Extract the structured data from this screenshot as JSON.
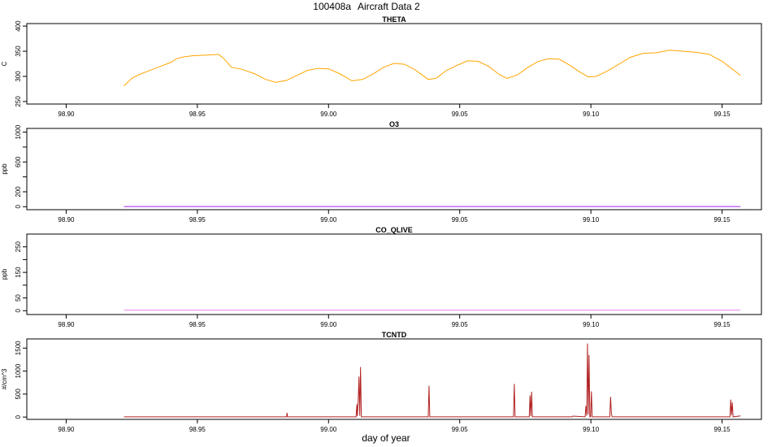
{
  "title_id": "100408a",
  "title_text": "Aircraft Data 2",
  "xlabel": "day of year",
  "x_range": [
    98.885,
    99.165
  ],
  "x_ticks": [
    98.9,
    98.95,
    99.0,
    99.05,
    99.1,
    99.15
  ],
  "x_tick_labels": [
    "98.90",
    "98.95",
    "99.00",
    "99.05",
    "99.10",
    "99.15"
  ],
  "colors": {
    "THETA": "#ffa500",
    "O3": "#a020f0",
    "CO_QLIVE": "#ee82ee",
    "TCNTD": "#b22222",
    "frame": "#000000"
  },
  "chart_data": [
    {
      "type": "line",
      "title": "THETA",
      "ylabel": "C",
      "ylim": [
        245,
        405
      ],
      "y_ticks": [
        250,
        300,
        350,
        400
      ],
      "y_tick_labels": [
        "250",
        "300",
        "350",
        "400"
      ],
      "series": [
        {
          "name": "THETA",
          "x": [
            98.922,
            98.925,
            98.928,
            98.932,
            98.936,
            98.94,
            98.942,
            98.945,
            98.948,
            98.952,
            98.956,
            98.958,
            98.96,
            98.963,
            98.967,
            98.972,
            98.976,
            98.98,
            98.984,
            98.988,
            98.992,
            98.996,
            99.0,
            99.004,
            99.009,
            99.013,
            99.017,
            99.021,
            99.025,
            99.029,
            99.033,
            99.038,
            99.041,
            99.045,
            99.049,
            99.053,
            99.057,
            99.061,
            99.065,
            99.068,
            99.072,
            99.076,
            99.08,
            99.084,
            99.088,
            99.092,
            99.096,
            99.099,
            99.102,
            99.106,
            99.11,
            99.115,
            99.12,
            99.125,
            99.13,
            99.135,
            99.14,
            99.145,
            99.15,
            99.153,
            99.157
          ],
          "values": [
            281,
            296,
            304,
            312,
            320,
            328,
            335,
            339,
            341,
            342,
            343,
            344,
            336,
            318,
            314,
            305,
            294,
            288,
            292,
            302,
            312,
            316,
            315,
            306,
            291,
            294,
            305,
            318,
            326,
            324,
            313,
            294,
            296,
            312,
            322,
            331,
            330,
            320,
            304,
            296,
            303,
            318,
            330,
            335,
            334,
            322,
            308,
            299,
            300,
            310,
            322,
            338,
            346,
            347,
            352,
            350,
            348,
            344,
            330,
            318,
            302
          ]
        }
      ]
    },
    {
      "type": "line",
      "title": "O3",
      "ylabel": "ppb",
      "ylim": [
        -40,
        1050
      ],
      "y_ticks": [
        0,
        200,
        400,
        600,
        800,
        1000
      ],
      "y_tick_labels": [
        "0",
        "200",
        "600",
        "1000"
      ],
      "y_labeled_ticks": [
        0,
        200,
        600,
        1000
      ],
      "series": [
        {
          "name": "O3",
          "x": [
            98.922,
            99.157
          ],
          "values": [
            2,
            2
          ]
        }
      ]
    },
    {
      "type": "line",
      "title": "CO_QLIVE",
      "ylabel": "ppb",
      "ylim": [
        -15,
        300
      ],
      "y_ticks": [
        0,
        50,
        100,
        150,
        200,
        250
      ],
      "y_tick_labels": [
        "0",
        "50",
        "150",
        "250"
      ],
      "y_labeled_ticks": [
        0,
        50,
        150,
        250
      ],
      "series": [
        {
          "name": "CO_QLIVE",
          "x": [
            98.922,
            99.157
          ],
          "values": [
            2,
            2
          ]
        }
      ]
    },
    {
      "type": "line",
      "title": "TCNTD",
      "ylabel": "#/cm^3",
      "ylim": [
        -50,
        1700
      ],
      "y_ticks": [
        0,
        500,
        1000,
        1500
      ],
      "y_tick_labels": [
        "0",
        "500",
        "1000",
        "1500"
      ],
      "series": [
        {
          "name": "TCNTD",
          "x": [
            98.922,
            98.984,
            98.9842,
            98.9844,
            99.0105,
            99.0108,
            99.011,
            99.0113,
            99.0116,
            99.0119,
            99.0122,
            99.0125,
            99.038,
            99.0383,
            99.0386,
            99.0705,
            99.0708,
            99.0711,
            99.0765,
            99.0768,
            99.0771,
            99.0774,
            99.0777,
            99.0928,
            99.0931,
            99.0978,
            99.0981,
            99.0984,
            99.0987,
            99.099,
            99.0993,
            99.0996,
            99.0999,
            99.1002,
            99.1005,
            99.1008,
            99.1011,
            99.1014,
            99.1072,
            99.1075,
            99.1078,
            99.1081,
            99.15,
            99.153,
            99.1533,
            99.1536,
            99.1539,
            99.1542,
            99.157
          ],
          "values": [
            5,
            5,
            90,
            5,
            5,
            280,
            20,
            350,
            880,
            30,
            1090,
            5,
            5,
            680,
            5,
            5,
            720,
            5,
            5,
            470,
            20,
            550,
            5,
            5,
            20,
            5,
            240,
            30,
            1600,
            60,
            1350,
            5,
            5,
            560,
            5,
            5,
            5,
            5,
            5,
            440,
            80,
            5,
            5,
            5,
            380,
            40,
            320,
            5,
            25
          ]
        }
      ]
    }
  ]
}
